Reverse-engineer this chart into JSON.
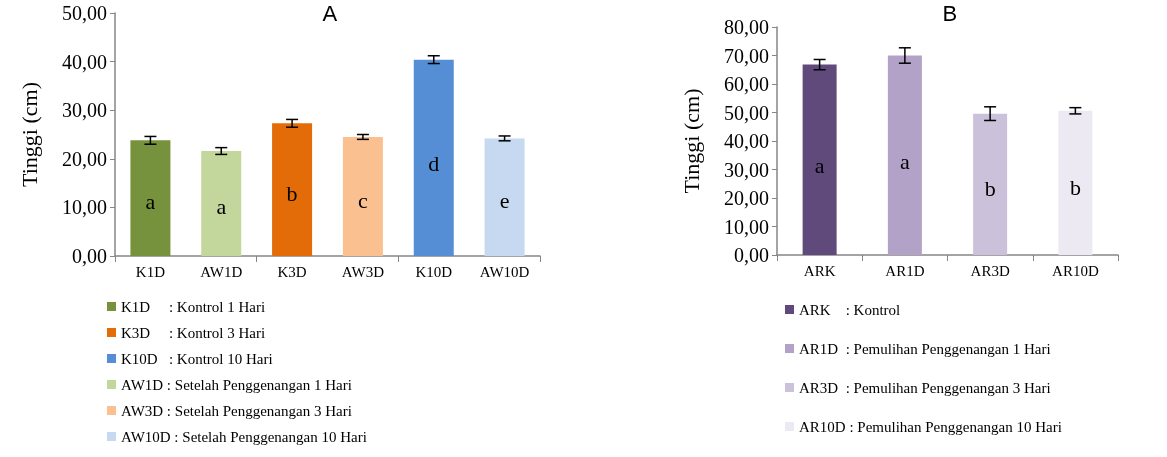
{
  "chart_data": [
    {
      "type": "bar",
      "title": "A",
      "ylabel": "Tinggi (cm)",
      "categories": [
        "K1D",
        "AW1D",
        "K3D",
        "AW3D",
        "K10D",
        "AW10D"
      ],
      "series": [
        {
          "name": "K1D     : Kontrol 1 Hari",
          "color": "#76923c",
          "values": [
            23.8,
            null,
            null,
            null,
            null,
            null
          ],
          "errors": [
            0.8,
            null,
            null,
            null,
            null,
            null
          ]
        },
        {
          "name": "K3D     : Kontrol 3 Hari",
          "color": "#e36c09",
          "values": [
            null,
            null,
            27.3,
            null,
            null,
            null
          ],
          "errors": [
            null,
            null,
            0.8,
            null,
            null,
            null
          ]
        },
        {
          "name": "K10D   : Kontrol 10 Hari",
          "color": "#558ed5",
          "values": [
            null,
            null,
            null,
            null,
            40.4,
            null
          ],
          "errors": [
            null,
            null,
            null,
            null,
            0.8,
            null
          ]
        },
        {
          "name": "AW1D : Setelah Penggenangan 1 Hari",
          "color": "#c3d69b",
          "values": [
            null,
            21.6,
            null,
            null,
            null,
            null
          ],
          "errors": [
            null,
            0.7,
            null,
            null,
            null,
            null
          ]
        },
        {
          "name": "AW3D : Setelah Penggenangan 3 Hari",
          "color": "#fac090",
          "values": [
            null,
            null,
            null,
            24.5,
            null,
            null
          ],
          "errors": [
            null,
            null,
            null,
            0.5,
            null,
            null
          ]
        },
        {
          "name": "AW10D : Setelah Penggenangan 10 Hari",
          "color": "#c6d9f1",
          "values": [
            null,
            null,
            null,
            null,
            null,
            24.2
          ],
          "errors": [
            null,
            null,
            null,
            null,
            null,
            0.5
          ]
        }
      ],
      "ylim": [
        0,
        50
      ],
      "yticks": [
        {
          "value": 0,
          "label": "0,00"
        },
        {
          "value": 10,
          "label": "10,00"
        },
        {
          "value": 20,
          "label": "20,00"
        },
        {
          "value": 30,
          "label": "30,00"
        },
        {
          "value": 40,
          "label": "40,00"
        },
        {
          "value": 50,
          "label": "50,00"
        }
      ],
      "annotations": [
        "a",
        "a",
        "b",
        "c",
        "d",
        "e"
      ],
      "grid": false,
      "legend": "bottom left"
    },
    {
      "type": "bar",
      "title": "B",
      "ylabel": "Tinggi (cm)",
      "categories": [
        "ARK",
        "AR1D",
        "AR3D",
        "AR10D"
      ],
      "series": [
        {
          "name": "ARK    : Kontrol",
          "color": "#604a7b",
          "values": [
            66.8,
            null,
            null,
            null
          ],
          "errors": [
            1.8,
            null,
            null,
            null
          ]
        },
        {
          "name": "AR1D  : Pemulihan Penggenangan 1 Hari",
          "color": "#b2a2c7",
          "values": [
            null,
            70.0,
            null,
            null
          ],
          "errors": [
            null,
            2.7,
            null,
            null
          ]
        },
        {
          "name": "AR3D  : Pemulihan Penggenangan 3 Hari",
          "color": "#ccc1da",
          "values": [
            null,
            null,
            49.6,
            null
          ],
          "errors": [
            null,
            null,
            2.4,
            null
          ]
        },
        {
          "name": "AR10D : Pemulihan Penggenangan 10 Hari",
          "color": "#ece9f2",
          "values": [
            null,
            null,
            null,
            50.6
          ],
          "errors": [
            null,
            null,
            null,
            1.1
          ]
        }
      ],
      "ylim": [
        0,
        80
      ],
      "yticks": [
        {
          "value": 0,
          "label": "0,00"
        },
        {
          "value": 10,
          "label": "10,00"
        },
        {
          "value": 20,
          "label": "20,00"
        },
        {
          "value": 30,
          "label": "30,00"
        },
        {
          "value": 40,
          "label": "40,00"
        },
        {
          "value": 50,
          "label": "50,00"
        },
        {
          "value": 60,
          "label": "60,00"
        },
        {
          "value": 70,
          "label": "70,00"
        },
        {
          "value": 80,
          "label": "80,00"
        }
      ],
      "annotations": [
        "a",
        "a",
        "b",
        "b"
      ],
      "grid": false,
      "legend": "bottom left"
    }
  ]
}
